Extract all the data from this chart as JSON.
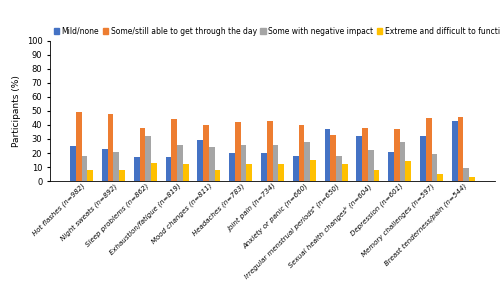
{
  "categories": [
    "Hot flashes (n=982)",
    "Night sweats (n=892)",
    "Sleep problems (n=862)",
    "Exhaustion/fatigue (n=819)",
    "Mood changes (n=811)",
    "Headaches (n=783)",
    "Joint pain (n=734)",
    "Anxiety or panic (n=660)",
    "Irregular menstrual periodsᵃ (n=650)",
    "Sexual health changesᵇ (n=604)",
    "Depression (n=601)",
    "Memory challenges (n=597)",
    "Breast tenderness/pain (n=544)"
  ],
  "series": {
    "Mild/none": [
      25,
      23,
      17,
      17,
      29,
      20,
      20,
      18,
      37,
      32,
      21,
      32,
      43
    ],
    "Some/still able to get through the day": [
      49,
      48,
      38,
      44,
      40,
      42,
      43,
      40,
      33,
      38,
      37,
      45,
      46
    ],
    "Some with negative impact": [
      18,
      21,
      32,
      26,
      24,
      26,
      26,
      28,
      18,
      22,
      28,
      19,
      9
    ],
    "Extreme and difficult to function": [
      8,
      8,
      13,
      12,
      8,
      12,
      12,
      15,
      12,
      8,
      14,
      5,
      3
    ]
  },
  "colors": {
    "Mild/none": "#4472C4",
    "Some/still able to get through the day": "#ED7D31",
    "Some with negative impact": "#A5A5A5",
    "Extreme and difficult to function": "#FFC000"
  },
  "ylabel": "Participants (%)",
  "ylim": [
    0,
    100
  ],
  "yticks": [
    0,
    10,
    20,
    30,
    40,
    50,
    60,
    70,
    80,
    90,
    100
  ],
  "legend_order": [
    "Mild/none",
    "Some/still able to get through the day",
    "Some with negative impact",
    "Extreme and difficult to function"
  ],
  "bar_width": 0.18,
  "legend_fontsize": 5.5,
  "ylabel_fontsize": 6.5,
  "ytick_fontsize": 6.0,
  "xtick_fontsize": 5.0
}
